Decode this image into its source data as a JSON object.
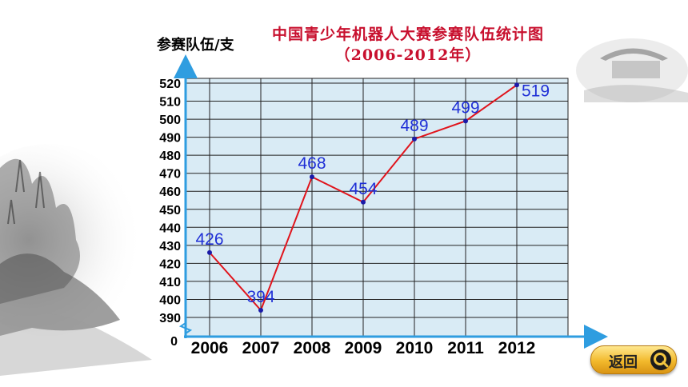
{
  "header": {
    "title_line1": "中国青少年机器人大赛参赛队伍统计图",
    "title_line2": "（2006-2012年）",
    "y_axis_label": "参赛队伍/支"
  },
  "nav": {
    "back_label": "返回",
    "back_icon": "magnifier-icon"
  },
  "colors": {
    "title": "#c8102e",
    "line": "#e0141c",
    "point": "#1a1aa8",
    "data_label": "#1f2fd6",
    "plot_bg": "#d9ebf5",
    "axis": "#2f9de0"
  },
  "chart_data": {
    "type": "line",
    "title": "中国青少年机器人大赛参赛队伍统计图（2006-2012年）",
    "xlabel": "",
    "ylabel": "参赛队伍/支",
    "categories": [
      "2006",
      "2007",
      "2008",
      "2009",
      "2010",
      "2011",
      "2012"
    ],
    "series": [
      {
        "values": [
          426,
          394,
          468,
          454,
          489,
          499,
          519
        ]
      }
    ],
    "y_ticks": [
      "520",
      "510",
      "500",
      "490",
      "480",
      "470",
      "460",
      "450",
      "440",
      "430",
      "420",
      "410",
      "400",
      "390"
    ],
    "y_origin_label": "0",
    "ylim": [
      390,
      520
    ],
    "axis_break": true,
    "grid": true,
    "legend": "none"
  }
}
